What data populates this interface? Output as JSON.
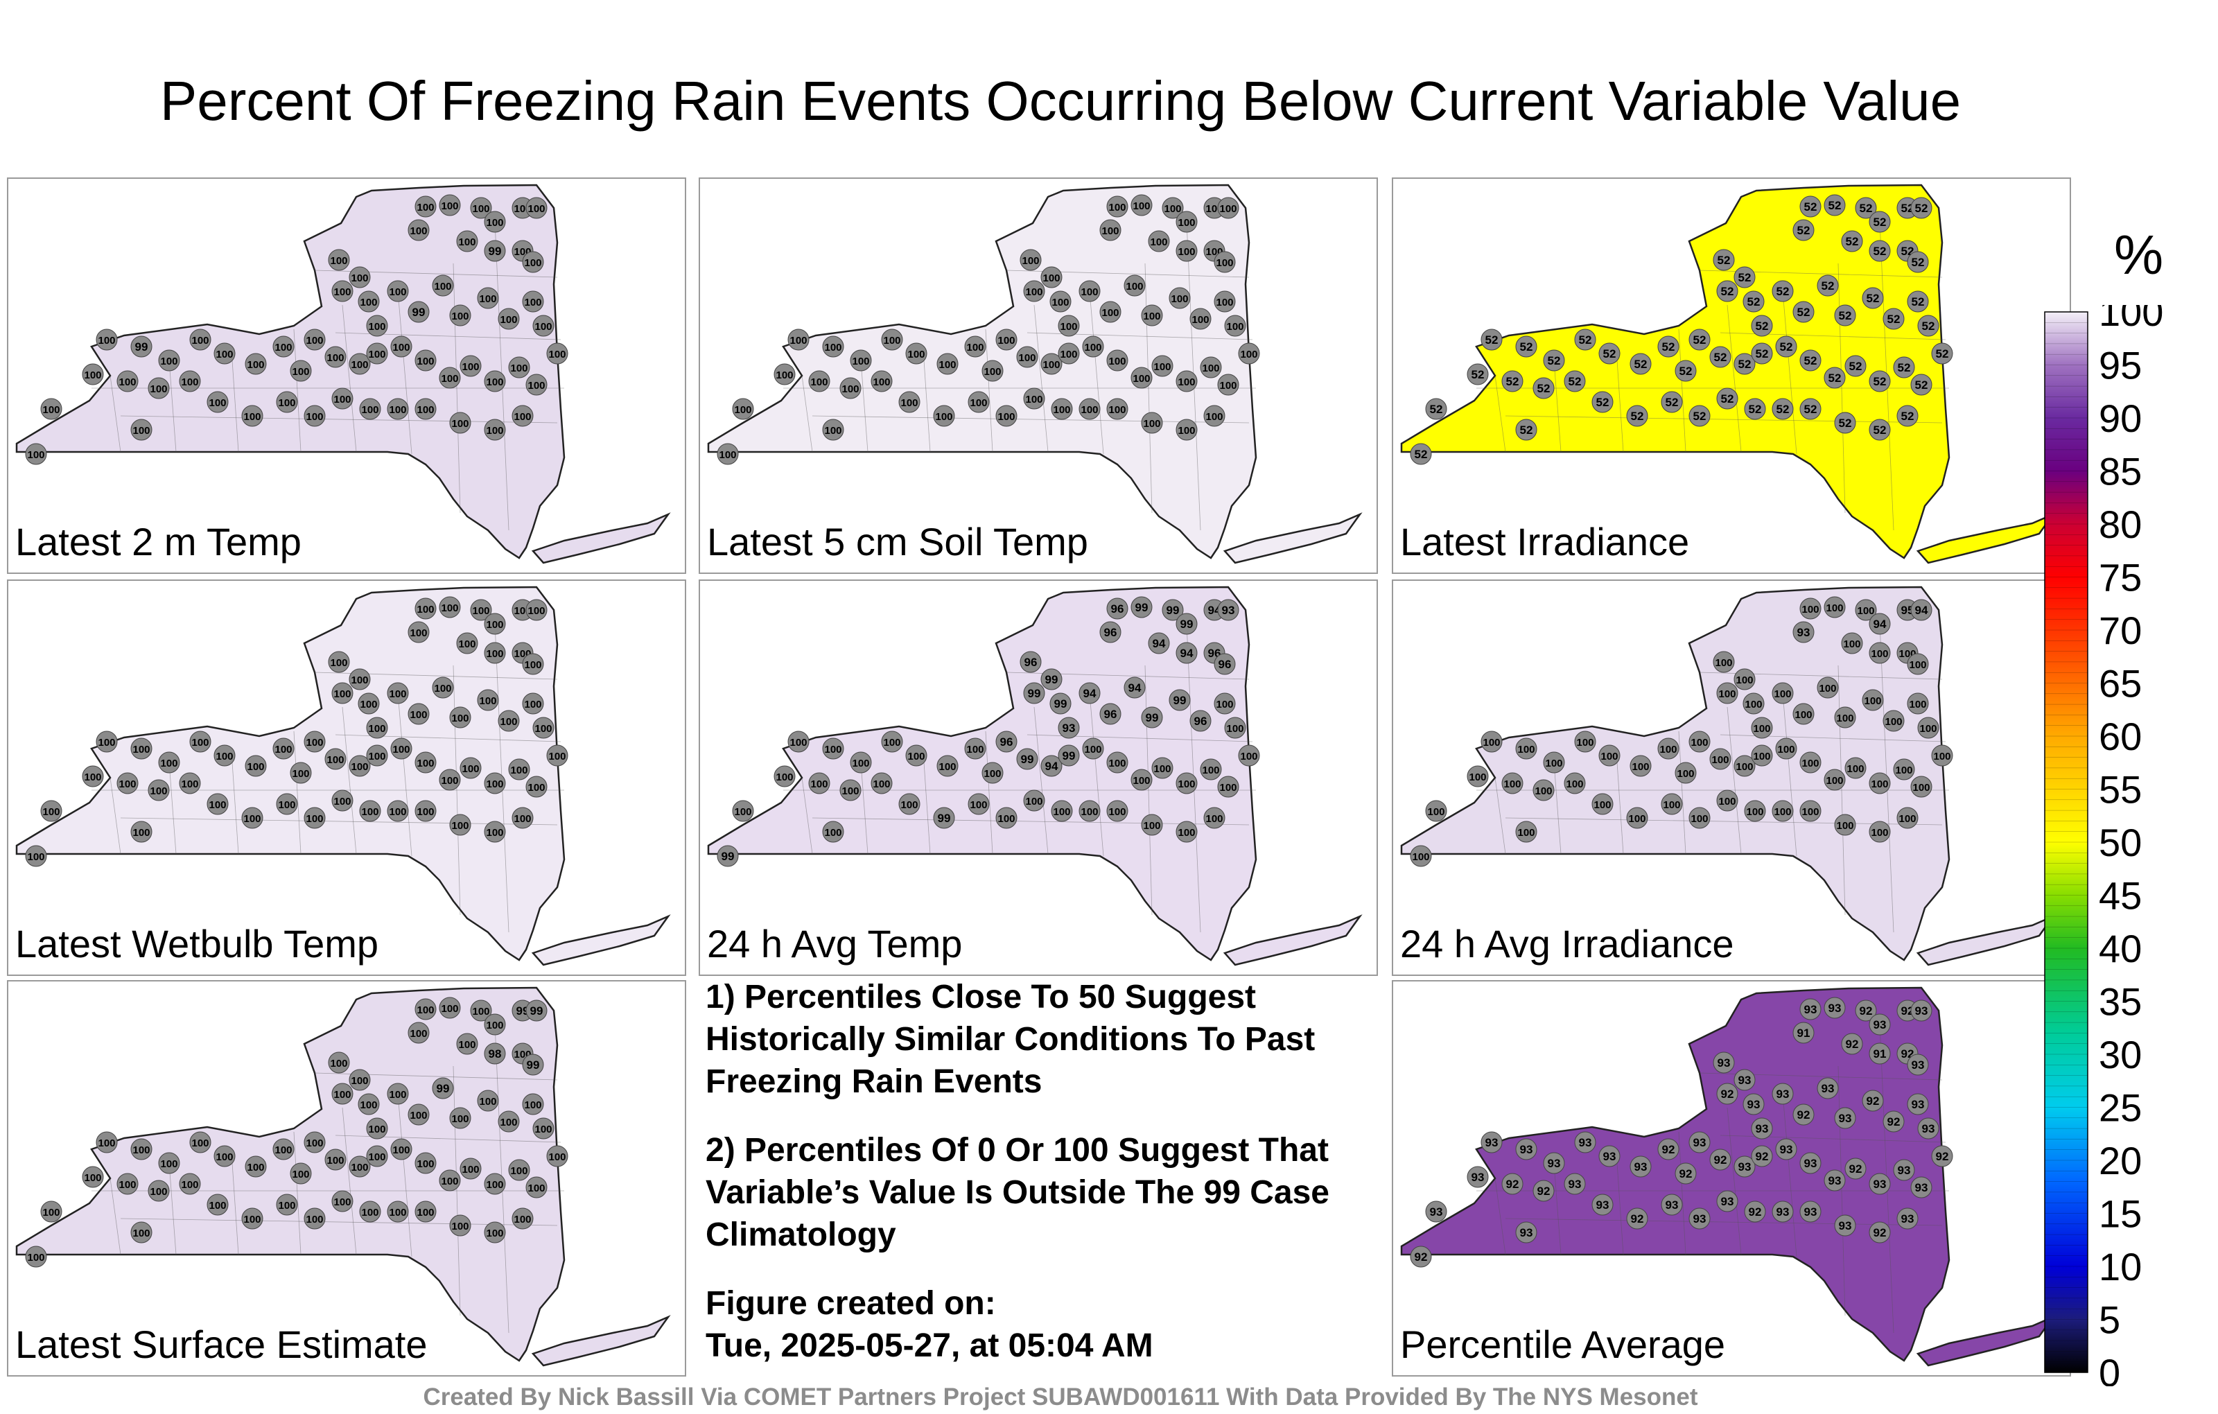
{
  "title": "Percent Of Freezing Rain Events Occurring Below Current Variable Value",
  "panels": [
    {
      "label": "Latest 2 m Temp",
      "fill": "#e6dcee",
      "station_values": [
        "100",
        "100",
        "100",
        "100",
        "100",
        "100",
        "100",
        "100",
        "99",
        "100",
        "100",
        "100",
        "100",
        "100",
        "100",
        "100",
        "100",
        "99",
        "100",
        "100",
        "100",
        "100",
        "100",
        "100",
        "100",
        "100",
        "99",
        "100",
        "100",
        "100",
        "100",
        "100",
        "100",
        "100",
        "100",
        "100",
        "100",
        "100",
        "100",
        "100",
        "100",
        "100",
        "100",
        "100",
        "100",
        "100",
        "100",
        "100",
        "100",
        "100",
        "100",
        "100",
        "100",
        "100",
        "100",
        "100",
        "100",
        "100",
        "100",
        "100",
        "100",
        "100"
      ]
    },
    {
      "label": "Latest 5 cm Soil Temp",
      "fill": "#f1ecf4",
      "station_values": [
        "100",
        "100",
        "100",
        "100",
        "100",
        "100",
        "100",
        "100",
        "100",
        "100",
        "100",
        "100",
        "100",
        "100",
        "100",
        "100",
        "100",
        "100",
        "100",
        "100",
        "100",
        "100",
        "100",
        "100",
        "100",
        "100",
        "100",
        "100",
        "100",
        "100",
        "100",
        "100",
        "100",
        "100",
        "100",
        "100",
        "100",
        "100",
        "100",
        "100",
        "100",
        "100",
        "100",
        "100",
        "100",
        "100",
        "100",
        "100",
        "100",
        "100",
        "100",
        "100",
        "100",
        "100",
        "100",
        "100",
        "100",
        "100",
        "100",
        "100",
        "100",
        "100"
      ]
    },
    {
      "label": "Latest Irradiance",
      "fill": "#ffff00",
      "station_values": [
        "52",
        "52",
        "52",
        "52",
        "52",
        "52",
        "52",
        "52",
        "52",
        "52",
        "52",
        "52",
        "52",
        "52",
        "52",
        "52",
        "52",
        "52",
        "52",
        "52",
        "52",
        "52",
        "52",
        "52",
        "52",
        "52",
        "52",
        "52",
        "52",
        "52",
        "52",
        "52",
        "52",
        "52",
        "52",
        "52",
        "52",
        "52",
        "52",
        "52",
        "52",
        "52",
        "52",
        "52",
        "52",
        "52",
        "52",
        "52",
        "52",
        "52",
        "52",
        "52",
        "52",
        "52",
        "52",
        "52",
        "52",
        "52",
        "52",
        "52",
        "52",
        "52"
      ]
    },
    {
      "label": "Latest Wetbulb Temp",
      "fill": "#efe9f4",
      "station_values": [
        "100",
        "100",
        "100",
        "100",
        "100",
        "100",
        "100",
        "100",
        "100",
        "100",
        "100",
        "100",
        "100",
        "100",
        "100",
        "100",
        "100",
        "100",
        "100",
        "100",
        "100",
        "100",
        "100",
        "100",
        "100",
        "100",
        "100",
        "100",
        "100",
        "100",
        "100",
        "100",
        "100",
        "100",
        "100",
        "100",
        "100",
        "100",
        "100",
        "100",
        "100",
        "100",
        "100",
        "100",
        "100",
        "100",
        "100",
        "100",
        "100",
        "100",
        "100",
        "100",
        "100",
        "100",
        "100",
        "100",
        "100",
        "100",
        "100",
        "100",
        "100",
        "100"
      ]
    },
    {
      "label": "24 h Avg Temp",
      "fill": "#e8ddf0",
      "station_values": [
        "96",
        "99",
        "99",
        "99",
        "94",
        "93",
        "96",
        "94",
        "94",
        "96",
        "96",
        "96",
        "99",
        "99",
        "99",
        "93",
        "94",
        "96",
        "94",
        "99",
        "99",
        "96",
        "100",
        "100",
        "100",
        "100",
        "100",
        "100",
        "100",
        "100",
        "100",
        "100",
        "100",
        "96",
        "99",
        "94",
        "99",
        "100",
        "100",
        "100",
        "100",
        "100",
        "100",
        "100",
        "100",
        "100",
        "100",
        "100",
        "100",
        "99",
        "100",
        "100",
        "100",
        "100",
        "100",
        "100",
        "100",
        "100",
        "100",
        "99",
        "100",
        "100"
      ]
    },
    {
      "label": "24 h Avg Irradiance",
      "fill": "#e6dcee",
      "station_values": [
        "100",
        "100",
        "100",
        "94",
        "95",
        "94",
        "93",
        "100",
        "100",
        "100",
        "100",
        "100",
        "100",
        "100",
        "100",
        "100",
        "100",
        "100",
        "100",
        "100",
        "100",
        "100",
        "100",
        "100",
        "100",
        "100",
        "100",
        "100",
        "100",
        "100",
        "100",
        "100",
        "100",
        "100",
        "100",
        "100",
        "100",
        "100",
        "100",
        "100",
        "100",
        "100",
        "100",
        "100",
        "100",
        "100",
        "100",
        "100",
        "100",
        "100",
        "100",
        "100",
        "100",
        "100",
        "100",
        "100",
        "100",
        "100",
        "100",
        "100",
        "100",
        "100"
      ]
    },
    {
      "label": "Latest Surface Estimate",
      "fill": "#e6dcee",
      "station_values": [
        "100",
        "100",
        "100",
        "100",
        "99",
        "99",
        "100",
        "100",
        "98",
        "100",
        "99",
        "100",
        "100",
        "100",
        "100",
        "100",
        "100",
        "100",
        "99",
        "100",
        "100",
        "100",
        "100",
        "100",
        "100",
        "100",
        "100",
        "100",
        "100",
        "100",
        "100",
        "100",
        "100",
        "100",
        "100",
        "100",
        "100",
        "100",
        "100",
        "100",
        "100",
        "100",
        "100",
        "100",
        "100",
        "100",
        "100",
        "100",
        "100",
        "100",
        "100",
        "100",
        "100",
        "100",
        "100",
        "100",
        "100",
        "100",
        "100",
        "100",
        "100",
        "100"
      ]
    },
    {
      "label": "Percentile Average",
      "fill": "#8646a8",
      "station_values": [
        "93",
        "93",
        "92",
        "93",
        "92",
        "93",
        "91",
        "92",
        "91",
        "92",
        "93",
        "93",
        "92",
        "93",
        "93",
        "93",
        "93",
        "92",
        "93",
        "93",
        "92",
        "92",
        "93",
        "93",
        "92",
        "93",
        "93",
        "93",
        "93",
        "93",
        "93",
        "92",
        "92",
        "93",
        "92",
        "93",
        "92",
        "93",
        "93",
        "93",
        "92",
        "93",
        "93",
        "93",
        "93",
        "92",
        "92",
        "93",
        "93",
        "92",
        "93",
        "93",
        "93",
        "92",
        "93",
        "93",
        "93",
        "92",
        "93",
        "92",
        "93",
        "93"
      ]
    }
  ],
  "notes": {
    "line1": "1) Percentiles Close To 50 Suggest Historically Similar Conditions To Past Freezing Rain Events",
    "line2": "2) Percentiles Of 0 Or 100 Suggest That Variable’s Value Is Outside The 99 Case Climatology",
    "line3": "Figure created on:",
    "line4": "Tue, 2025-05-27, at 05:04 AM"
  },
  "credit": "Created By Nick Bassill Via COMET Partners Project SUBAWD001611 With Data Provided By The NYS Mesonet",
  "colorbar": {
    "unit": "%",
    "ticks": [
      "0",
      "5",
      "10",
      "15",
      "20",
      "25",
      "30",
      "35",
      "40",
      "45",
      "50",
      "55",
      "60",
      "65",
      "70",
      "75",
      "80",
      "85",
      "90",
      "95",
      "100"
    ],
    "stops": [
      {
        "v": 0,
        "c": "#000000"
      },
      {
        "v": 5,
        "c": "#1c1c7c"
      },
      {
        "v": 10,
        "c": "#0000d8"
      },
      {
        "v": 18,
        "c": "#0066ff"
      },
      {
        "v": 25,
        "c": "#00ccee"
      },
      {
        "v": 32,
        "c": "#00cc99"
      },
      {
        "v": 40,
        "c": "#22bb22"
      },
      {
        "v": 45,
        "c": "#88dd00"
      },
      {
        "v": 50,
        "c": "#ffff00"
      },
      {
        "v": 60,
        "c": "#ffaa00"
      },
      {
        "v": 67,
        "c": "#ff5500"
      },
      {
        "v": 75,
        "c": "#ff0000"
      },
      {
        "v": 80,
        "c": "#cc0033"
      },
      {
        "v": 85,
        "c": "#6a0080"
      },
      {
        "v": 90,
        "c": "#6a2aa0"
      },
      {
        "v": 95,
        "c": "#9f72c0"
      },
      {
        "v": 100,
        "c": "#f4f0f8"
      }
    ]
  }
}
